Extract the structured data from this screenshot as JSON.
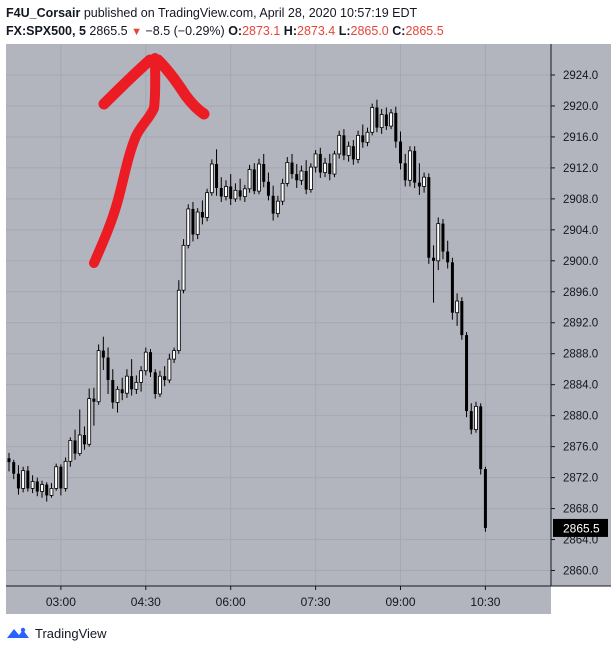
{
  "header": {
    "author": "F4U_Corsair",
    "published_text": " published on TradingView.com, April 28, 2020 10:57:19 EDT",
    "symbol": "FX:SPX500, 5",
    "last": "2865.5",
    "change": "−8.5 (−0.29%)",
    "open_label": "O:",
    "open": "2873.1",
    "high_label": "H:",
    "high": "2873.4",
    "low_label": "L:",
    "low": "2865.0",
    "close_label": "C:",
    "close": "2865.5"
  },
  "footer": {
    "brand": "TradingView",
    "logo_icon": "tradingview-logo-icon"
  },
  "colors": {
    "plot_bg": "#b2b5be",
    "grid": "#a5a8b1",
    "candle": "#000000",
    "annotation": "#ec1c24",
    "price_tag_bg": "#000000"
  },
  "chart_data": {
    "type": "candlestick",
    "interval": "5",
    "ylim": [
      2858,
      2928
    ],
    "y_ticks": [
      "2924.0",
      "2920.0",
      "2916.0",
      "2912.0",
      "2908.0",
      "2904.0",
      "2900.0",
      "2896.0",
      "2892.0",
      "2888.0",
      "2884.0",
      "2880.0",
      "2876.0",
      "2872.0",
      "2868.0",
      "2864.0",
      "2860.0"
    ],
    "x_ticks": [
      "03:00",
      "04:30",
      "06:00",
      "07:30",
      "09:00",
      "10:30"
    ],
    "x_tick_times": [
      "03:00",
      "04:30",
      "06:00",
      "07:30",
      "09:00",
      "10:30"
    ],
    "time_range": [
      "02:05",
      "10:55"
    ],
    "last_price_label": "2865.5",
    "annotation": "red-arrow-up",
    "candles": [
      {
        "t": "02:05",
        "o": 2874.5,
        "h": 2875.2,
        "l": 2872.8,
        "c": 2874.0
      },
      {
        "t": "02:10",
        "o": 2874.0,
        "h": 2874.3,
        "l": 2871.8,
        "c": 2872.5
      },
      {
        "t": "02:15",
        "o": 2872.5,
        "h": 2873.6,
        "l": 2869.8,
        "c": 2870.6
      },
      {
        "t": "02:20",
        "o": 2870.6,
        "h": 2873.4,
        "l": 2870.1,
        "c": 2872.9
      },
      {
        "t": "02:25",
        "o": 2872.9,
        "h": 2873.5,
        "l": 2870.2,
        "c": 2870.6
      },
      {
        "t": "02:30",
        "o": 2870.6,
        "h": 2872.3,
        "l": 2870.0,
        "c": 2871.5
      },
      {
        "t": "02:35",
        "o": 2871.5,
        "h": 2872.0,
        "l": 2869.6,
        "c": 2870.2
      },
      {
        "t": "02:40",
        "o": 2870.2,
        "h": 2871.6,
        "l": 2869.4,
        "c": 2871.1
      },
      {
        "t": "02:45",
        "o": 2871.1,
        "h": 2871.4,
        "l": 2868.9,
        "c": 2869.7
      },
      {
        "t": "02:50",
        "o": 2869.7,
        "h": 2871.3,
        "l": 2869.4,
        "c": 2870.6
      },
      {
        "t": "02:55",
        "o": 2870.6,
        "h": 2873.8,
        "l": 2870.3,
        "c": 2873.4
      },
      {
        "t": "03:00",
        "o": 2873.4,
        "h": 2873.7,
        "l": 2869.7,
        "c": 2870.6
      },
      {
        "t": "03:05",
        "o": 2870.6,
        "h": 2874.6,
        "l": 2870.2,
        "c": 2874.1
      },
      {
        "t": "03:10",
        "o": 2874.1,
        "h": 2877.2,
        "l": 2873.4,
        "c": 2876.8
      },
      {
        "t": "03:15",
        "o": 2876.8,
        "h": 2878.2,
        "l": 2874.3,
        "c": 2875.1
      },
      {
        "t": "03:20",
        "o": 2875.1,
        "h": 2880.8,
        "l": 2874.8,
        "c": 2877.5
      },
      {
        "t": "03:25",
        "o": 2877.5,
        "h": 2878.6,
        "l": 2875.6,
        "c": 2876.3
      },
      {
        "t": "03:30",
        "o": 2876.3,
        "h": 2883.5,
        "l": 2876.0,
        "c": 2882.2
      },
      {
        "t": "03:35",
        "o": 2882.2,
        "h": 2883.6,
        "l": 2878.7,
        "c": 2881.8
      },
      {
        "t": "03:40",
        "o": 2881.8,
        "h": 2889.2,
        "l": 2881.4,
        "c": 2888.4
      },
      {
        "t": "03:45",
        "o": 2888.4,
        "h": 2890.2,
        "l": 2885.9,
        "c": 2887.5
      },
      {
        "t": "03:50",
        "o": 2887.5,
        "h": 2888.8,
        "l": 2882.8,
        "c": 2884.6
      },
      {
        "t": "03:55",
        "o": 2884.6,
        "h": 2886.0,
        "l": 2880.9,
        "c": 2881.7
      },
      {
        "t": "04:00",
        "o": 2881.7,
        "h": 2883.8,
        "l": 2880.4,
        "c": 2883.4
      },
      {
        "t": "04:05",
        "o": 2883.4,
        "h": 2884.9,
        "l": 2882.0,
        "c": 2882.9
      },
      {
        "t": "04:10",
        "o": 2882.9,
        "h": 2886.0,
        "l": 2882.3,
        "c": 2885.1
      },
      {
        "t": "04:15",
        "o": 2885.1,
        "h": 2887.3,
        "l": 2882.6,
        "c": 2883.4
      },
      {
        "t": "04:20",
        "o": 2883.4,
        "h": 2885.2,
        "l": 2882.8,
        "c": 2884.3
      },
      {
        "t": "04:25",
        "o": 2884.3,
        "h": 2886.4,
        "l": 2883.1,
        "c": 2885.8
      },
      {
        "t": "04:30",
        "o": 2885.8,
        "h": 2888.8,
        "l": 2885.2,
        "c": 2888.2
      },
      {
        "t": "04:35",
        "o": 2888.2,
        "h": 2888.6,
        "l": 2885.0,
        "c": 2885.6
      },
      {
        "t": "04:40",
        "o": 2885.6,
        "h": 2886.0,
        "l": 2882.2,
        "c": 2882.8
      },
      {
        "t": "04:45",
        "o": 2882.8,
        "h": 2885.8,
        "l": 2882.4,
        "c": 2885.1
      },
      {
        "t": "04:50",
        "o": 2885.1,
        "h": 2886.4,
        "l": 2883.8,
        "c": 2884.6
      },
      {
        "t": "04:55",
        "o": 2884.6,
        "h": 2888.0,
        "l": 2884.2,
        "c": 2887.3
      },
      {
        "t": "05:00",
        "o": 2887.3,
        "h": 2888.8,
        "l": 2886.8,
        "c": 2888.4
      },
      {
        "t": "05:05",
        "o": 2888.4,
        "h": 2897.5,
        "l": 2888.0,
        "c": 2896.2
      },
      {
        "t": "05:10",
        "o": 2896.2,
        "h": 2902.8,
        "l": 2895.8,
        "c": 2902.0
      },
      {
        "t": "05:15",
        "o": 2902.0,
        "h": 2907.3,
        "l": 2901.6,
        "c": 2906.7
      },
      {
        "t": "05:20",
        "o": 2906.7,
        "h": 2907.6,
        "l": 2902.5,
        "c": 2903.4
      },
      {
        "t": "05:25",
        "o": 2903.4,
        "h": 2906.8,
        "l": 2902.8,
        "c": 2906.3
      },
      {
        "t": "05:30",
        "o": 2906.3,
        "h": 2907.8,
        "l": 2904.7,
        "c": 2905.6
      },
      {
        "t": "05:35",
        "o": 2905.6,
        "h": 2909.3,
        "l": 2905.1,
        "c": 2908.8
      },
      {
        "t": "05:40",
        "o": 2908.8,
        "h": 2913.1,
        "l": 2908.4,
        "c": 2912.5
      },
      {
        "t": "05:45",
        "o": 2912.5,
        "h": 2914.4,
        "l": 2908.4,
        "c": 2909.4
      },
      {
        "t": "05:50",
        "o": 2909.4,
        "h": 2910.8,
        "l": 2907.6,
        "c": 2908.3
      },
      {
        "t": "05:55",
        "o": 2908.3,
        "h": 2910.4,
        "l": 2907.8,
        "c": 2909.6
      },
      {
        "t": "06:00",
        "o": 2909.6,
        "h": 2911.2,
        "l": 2907.2,
        "c": 2908.0
      },
      {
        "t": "06:05",
        "o": 2908.0,
        "h": 2910.0,
        "l": 2907.6,
        "c": 2909.1
      },
      {
        "t": "06:10",
        "o": 2909.1,
        "h": 2910.6,
        "l": 2907.8,
        "c": 2908.3
      },
      {
        "t": "06:15",
        "o": 2908.3,
        "h": 2909.8,
        "l": 2907.6,
        "c": 2909.3
      },
      {
        "t": "06:20",
        "o": 2909.3,
        "h": 2912.4,
        "l": 2908.8,
        "c": 2911.8
      },
      {
        "t": "06:25",
        "o": 2911.8,
        "h": 2912.6,
        "l": 2908.6,
        "c": 2909.0
      },
      {
        "t": "06:30",
        "o": 2909.0,
        "h": 2913.2,
        "l": 2908.6,
        "c": 2912.5
      },
      {
        "t": "06:35",
        "o": 2912.5,
        "h": 2913.8,
        "l": 2909.5,
        "c": 2910.2
      },
      {
        "t": "06:40",
        "o": 2910.2,
        "h": 2911.4,
        "l": 2907.8,
        "c": 2908.4
      },
      {
        "t": "06:45",
        "o": 2908.4,
        "h": 2909.7,
        "l": 2905.2,
        "c": 2906.1
      },
      {
        "t": "06:50",
        "o": 2906.1,
        "h": 2908.4,
        "l": 2905.6,
        "c": 2907.7
      },
      {
        "t": "06:55",
        "o": 2907.7,
        "h": 2910.6,
        "l": 2907.2,
        "c": 2910.0
      },
      {
        "t": "07:00",
        "o": 2910.0,
        "h": 2913.4,
        "l": 2909.6,
        "c": 2912.7
      },
      {
        "t": "07:05",
        "o": 2912.7,
        "h": 2913.8,
        "l": 2910.6,
        "c": 2911.2
      },
      {
        "t": "07:10",
        "o": 2911.2,
        "h": 2912.5,
        "l": 2909.4,
        "c": 2910.4
      },
      {
        "t": "07:15",
        "o": 2910.4,
        "h": 2912.3,
        "l": 2909.8,
        "c": 2911.6
      },
      {
        "t": "07:20",
        "o": 2911.6,
        "h": 2913.0,
        "l": 2908.6,
        "c": 2909.2
      },
      {
        "t": "07:25",
        "o": 2909.2,
        "h": 2912.6,
        "l": 2908.8,
        "c": 2912.1
      },
      {
        "t": "07:30",
        "o": 2912.1,
        "h": 2914.3,
        "l": 2911.4,
        "c": 2913.8
      },
      {
        "t": "07:35",
        "o": 2913.8,
        "h": 2914.6,
        "l": 2910.7,
        "c": 2911.4
      },
      {
        "t": "07:40",
        "o": 2911.4,
        "h": 2913.3,
        "l": 2910.8,
        "c": 2912.6
      },
      {
        "t": "07:45",
        "o": 2912.6,
        "h": 2913.8,
        "l": 2910.4,
        "c": 2911.2
      },
      {
        "t": "07:50",
        "o": 2911.2,
        "h": 2914.2,
        "l": 2910.8,
        "c": 2913.8
      },
      {
        "t": "07:55",
        "o": 2913.8,
        "h": 2916.8,
        "l": 2913.2,
        "c": 2916.2
      },
      {
        "t": "08:00",
        "o": 2916.2,
        "h": 2917.0,
        "l": 2913.0,
        "c": 2913.6
      },
      {
        "t": "08:05",
        "o": 2913.6,
        "h": 2915.4,
        "l": 2912.8,
        "c": 2914.8
      },
      {
        "t": "08:10",
        "o": 2914.8,
        "h": 2915.6,
        "l": 2912.4,
        "c": 2913.1
      },
      {
        "t": "08:15",
        "o": 2913.1,
        "h": 2916.8,
        "l": 2912.6,
        "c": 2916.2
      },
      {
        "t": "08:20",
        "o": 2916.2,
        "h": 2917.6,
        "l": 2914.6,
        "c": 2915.3
      },
      {
        "t": "08:25",
        "o": 2915.3,
        "h": 2917.2,
        "l": 2914.8,
        "c": 2916.6
      },
      {
        "t": "08:30",
        "o": 2916.6,
        "h": 2920.3,
        "l": 2916.2,
        "c": 2919.8
      },
      {
        "t": "08:35",
        "o": 2919.8,
        "h": 2920.8,
        "l": 2916.6,
        "c": 2917.2
      },
      {
        "t": "08:40",
        "o": 2917.2,
        "h": 2919.6,
        "l": 2916.4,
        "c": 2918.9
      },
      {
        "t": "08:45",
        "o": 2918.9,
        "h": 2919.8,
        "l": 2916.9,
        "c": 2917.4
      },
      {
        "t": "08:50",
        "o": 2917.4,
        "h": 2919.6,
        "l": 2917.0,
        "c": 2919.1
      },
      {
        "t": "08:55",
        "o": 2919.1,
        "h": 2919.9,
        "l": 2914.6,
        "c": 2915.4
      },
      {
        "t": "09:00",
        "o": 2915.4,
        "h": 2916.7,
        "l": 2911.8,
        "c": 2912.6
      },
      {
        "t": "09:05",
        "o": 2912.6,
        "h": 2913.8,
        "l": 2909.6,
        "c": 2910.4
      },
      {
        "t": "09:10",
        "o": 2910.4,
        "h": 2914.8,
        "l": 2909.6,
        "c": 2914.2
      },
      {
        "t": "09:15",
        "o": 2914.2,
        "h": 2914.8,
        "l": 2909.4,
        "c": 2910.1
      },
      {
        "t": "09:20",
        "o": 2910.1,
        "h": 2912.6,
        "l": 2908.5,
        "c": 2909.6
      },
      {
        "t": "09:25",
        "o": 2909.6,
        "h": 2911.4,
        "l": 2908.8,
        "c": 2910.8
      },
      {
        "t": "09:30",
        "o": 2910.8,
        "h": 2911.3,
        "l": 2899.6,
        "c": 2900.4
      },
      {
        "t": "09:35",
        "o": 2900.4,
        "h": 2902.0,
        "l": 2894.6,
        "c": 2900.0
      },
      {
        "t": "09:40",
        "o": 2900.0,
        "h": 2905.6,
        "l": 2898.8,
        "c": 2904.8
      },
      {
        "t": "09:45",
        "o": 2904.8,
        "h": 2905.4,
        "l": 2900.2,
        "c": 2901.2
      },
      {
        "t": "09:50",
        "o": 2901.2,
        "h": 2902.6,
        "l": 2899.0,
        "c": 2899.8
      },
      {
        "t": "09:55",
        "o": 2899.8,
        "h": 2900.4,
        "l": 2892.4,
        "c": 2893.3
      },
      {
        "t": "10:00",
        "o": 2893.3,
        "h": 2895.8,
        "l": 2891.6,
        "c": 2894.8
      },
      {
        "t": "10:05",
        "o": 2894.8,
        "h": 2895.3,
        "l": 2889.8,
        "c": 2890.4
      },
      {
        "t": "10:10",
        "o": 2890.4,
        "h": 2890.8,
        "l": 2879.8,
        "c": 2880.6
      },
      {
        "t": "10:15",
        "o": 2880.6,
        "h": 2881.6,
        "l": 2877.6,
        "c": 2878.2
      },
      {
        "t": "10:20",
        "o": 2878.2,
        "h": 2881.8,
        "l": 2877.8,
        "c": 2881.2
      },
      {
        "t": "10:25",
        "o": 2881.2,
        "h": 2881.6,
        "l": 2872.4,
        "c": 2873.1
      },
      {
        "t": "10:30",
        "o": 2873.1,
        "h": 2873.4,
        "l": 2865.0,
        "c": 2865.5
      }
    ]
  }
}
